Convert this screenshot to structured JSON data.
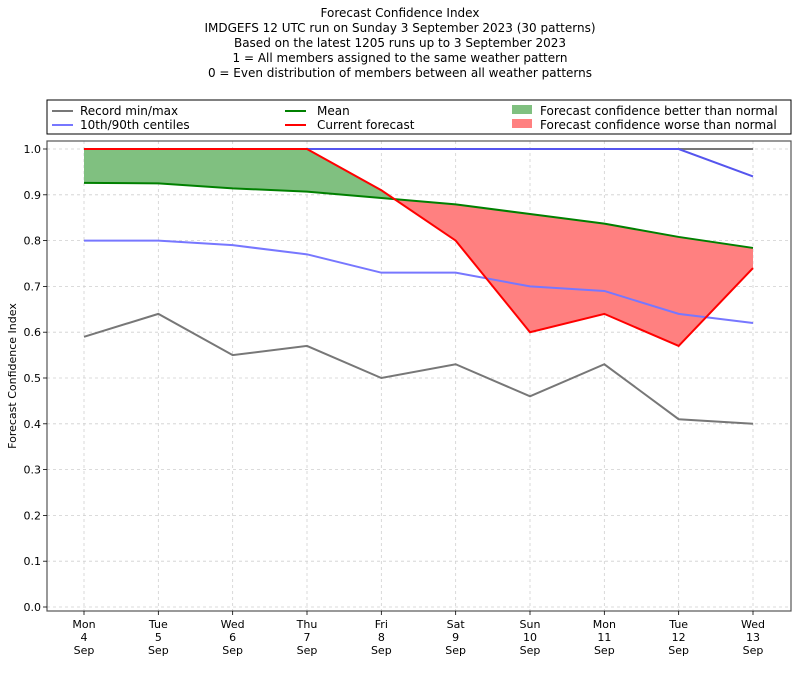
{
  "chart_data": {
    "type": "line",
    "title_lines": [
      "Forecast Confidence Index",
      "IMDGEFS 12 UTC run on Sunday 3 September 2023 (30 patterns)",
      "Based on the latest 1205 runs up to 3 September 2023",
      "1 = All members assigned to the same weather pattern",
      "0 = Even distribution of members between all weather patterns"
    ],
    "xlabel": "",
    "ylabel": "Forecast Confidence Index",
    "ylim": [
      0.0,
      1.0
    ],
    "yticks": [
      "0.0",
      "0.1",
      "0.2",
      "0.3",
      "0.4",
      "0.5",
      "0.6",
      "0.7",
      "0.8",
      "0.9",
      "1.0"
    ],
    "ytick_values": [
      0.0,
      0.1,
      0.2,
      0.3,
      0.4,
      0.5,
      0.6,
      0.7,
      0.8,
      0.9,
      1.0
    ],
    "categories": [
      [
        "Mon",
        "4",
        "Sep"
      ],
      [
        "Tue",
        "5",
        "Sep"
      ],
      [
        "Wed",
        "6",
        "Sep"
      ],
      [
        "Thu",
        "7",
        "Sep"
      ],
      [
        "Fri",
        "8",
        "Sep"
      ],
      [
        "Sat",
        "9",
        "Sep"
      ],
      [
        "Sun",
        "10",
        "Sep"
      ],
      [
        "Mon",
        "11",
        "Sep"
      ],
      [
        "Tue",
        "12",
        "Sep"
      ],
      [
        "Wed",
        "13",
        "Sep"
      ]
    ],
    "grid": true,
    "legend_position": "top",
    "series": [
      {
        "key": "record_max",
        "name": "Record min/max",
        "color": "#777777",
        "values": [
          1.0,
          1.0,
          1.0,
          1.0,
          1.0,
          1.0,
          1.0,
          1.0,
          1.0,
          1.0
        ]
      },
      {
        "key": "record_min",
        "name": "Record min/max",
        "color": "#777777",
        "values": [
          0.59,
          0.64,
          0.55,
          0.57,
          0.5,
          0.53,
          0.46,
          0.53,
          0.41,
          0.4
        ]
      },
      {
        "key": "centile_90",
        "name": "10th/90th centiles",
        "color": "#7777ff",
        "values": [
          1.0,
          1.0,
          1.0,
          1.0,
          1.0,
          1.0,
          1.0,
          1.0,
          1.0,
          0.94
        ]
      },
      {
        "key": "centile_10",
        "name": "10th/90th centiles",
        "color": "#7777ff",
        "values": [
          0.8,
          0.8,
          0.79,
          0.77,
          0.73,
          0.73,
          0.7,
          0.69,
          0.64,
          0.62
        ]
      },
      {
        "key": "mean",
        "name": "Mean",
        "color": "#008000",
        "values": [
          0.926,
          0.925,
          0.914,
          0.907,
          0.893,
          0.879,
          0.858,
          0.837,
          0.808,
          0.784
        ]
      },
      {
        "key": "current",
        "name": "Current forecast",
        "color": "#ff0000",
        "values": [
          1.0,
          1.0,
          1.0,
          1.0,
          0.91,
          0.8,
          0.6,
          0.64,
          0.57,
          0.74
        ]
      }
    ],
    "fills": {
      "better": {
        "name": "Forecast confidence better than normal",
        "color": "#80c080"
      },
      "worse": {
        "name": "Forecast confidence worse than normal",
        "color": "#ff8080"
      }
    },
    "legend": [
      {
        "label": "Record min/max",
        "kind": "line",
        "color": "#777777"
      },
      {
        "label": "10th/90th centiles",
        "kind": "line",
        "color": "#7777ff"
      },
      {
        "label": "Mean",
        "kind": "line",
        "color": "#008000"
      },
      {
        "label": "Current forecast",
        "kind": "line",
        "color": "#ff0000"
      },
      {
        "label": "Forecast confidence better than normal",
        "kind": "patch",
        "color": "#80c080"
      },
      {
        "label": "Forecast confidence worse than normal",
        "kind": "patch",
        "color": "#ff8080"
      }
    ]
  }
}
